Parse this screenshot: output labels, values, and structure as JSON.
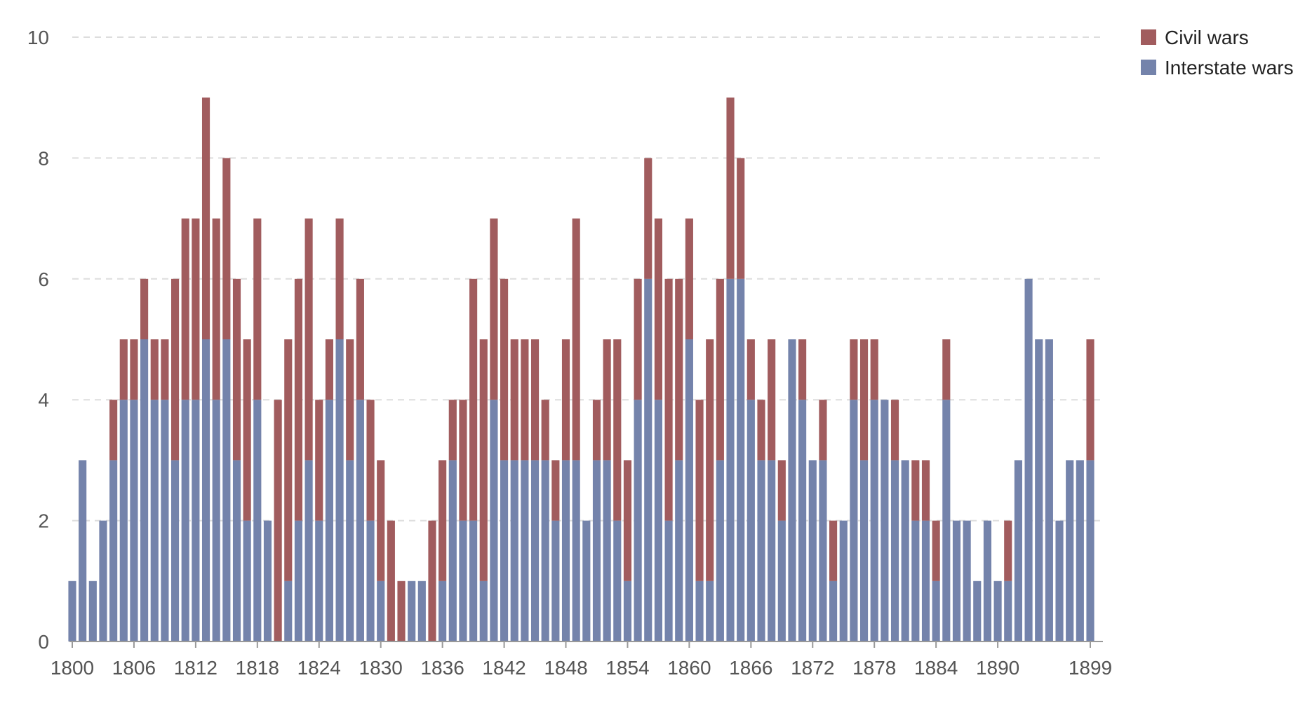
{
  "chart_data": {
    "type": "bar",
    "stacked": true,
    "grid": true,
    "legend_position": "top-right",
    "colors": {
      "interstate": "#7483ab",
      "civil": "#a15c5e",
      "grid": "#dddddd",
      "axis": "#999999"
    },
    "x": [
      1800,
      1801,
      1802,
      1803,
      1804,
      1805,
      1806,
      1807,
      1808,
      1809,
      1810,
      1811,
      1812,
      1813,
      1814,
      1815,
      1816,
      1817,
      1818,
      1819,
      1820,
      1821,
      1822,
      1823,
      1824,
      1825,
      1826,
      1827,
      1828,
      1829,
      1830,
      1831,
      1832,
      1833,
      1834,
      1835,
      1836,
      1837,
      1838,
      1839,
      1840,
      1841,
      1842,
      1843,
      1844,
      1845,
      1846,
      1847,
      1848,
      1849,
      1850,
      1851,
      1852,
      1853,
      1854,
      1855,
      1856,
      1857,
      1858,
      1859,
      1860,
      1861,
      1862,
      1863,
      1864,
      1865,
      1866,
      1867,
      1868,
      1869,
      1870,
      1871,
      1872,
      1873,
      1874,
      1875,
      1876,
      1877,
      1878,
      1879,
      1880,
      1881,
      1882,
      1883,
      1884,
      1885,
      1886,
      1887,
      1888,
      1889,
      1890,
      1891,
      1892,
      1893,
      1894,
      1895,
      1896,
      1897,
      1898,
      1899
    ],
    "x_tick_labels": [
      "1800",
      "1806",
      "1812",
      "1818",
      "1824",
      "1830",
      "1836",
      "1842",
      "1848",
      "1854",
      "1860",
      "1866",
      "1872",
      "1878",
      "1884",
      "1890",
      "1899"
    ],
    "y_ticks": [
      "0",
      "2",
      "4",
      "6",
      "8",
      "10"
    ],
    "ylim": [
      0,
      10
    ],
    "series": [
      {
        "name": "Interstate wars",
        "key": "interstate",
        "values": [
          1,
          3,
          1,
          2,
          3,
          4,
          4,
          5,
          4,
          4,
          3,
          4,
          4,
          5,
          4,
          5,
          3,
          2,
          4,
          2,
          0,
          1,
          2,
          3,
          2,
          4,
          5,
          3,
          4,
          2,
          1,
          0,
          0,
          1,
          1,
          0,
          1,
          3,
          2,
          2,
          1,
          4,
          3,
          3,
          3,
          3,
          3,
          2,
          3,
          3,
          2,
          3,
          3,
          2,
          1,
          4,
          6,
          4,
          2,
          3,
          5,
          1,
          1,
          3,
          6,
          6,
          4,
          3,
          3,
          2,
          5,
          4,
          3,
          3,
          1,
          2,
          4,
          3,
          4,
          4,
          3,
          3,
          2,
          2,
          1,
          4,
          2,
          2,
          1,
          2,
          1,
          1,
          3,
          6,
          5,
          5,
          2,
          3,
          3,
          3
        ]
      },
      {
        "name": "Civil wars",
        "key": "civil",
        "values": [
          0,
          0,
          0,
          0,
          1,
          1,
          1,
          1,
          1,
          1,
          3,
          3,
          3,
          4,
          3,
          3,
          3,
          3,
          3,
          0,
          4,
          4,
          4,
          4,
          2,
          1,
          2,
          2,
          2,
          2,
          2,
          2,
          1,
          0,
          0,
          2,
          2,
          1,
          2,
          4,
          4,
          3,
          3,
          2,
          2,
          2,
          1,
          1,
          2,
          4,
          0,
          1,
          2,
          3,
          2,
          2,
          2,
          3,
          4,
          3,
          2,
          3,
          4,
          3,
          3,
          2,
          1,
          1,
          2,
          1,
          0,
          1,
          0,
          1,
          1,
          0,
          1,
          2,
          1,
          0,
          1,
          0,
          1,
          1,
          1,
          1,
          0,
          0,
          0,
          0,
          0,
          1,
          0,
          0,
          0,
          0,
          0,
          0,
          0,
          2
        ]
      }
    ],
    "legend": [
      "Civil wars",
      "Interstate wars"
    ]
  }
}
